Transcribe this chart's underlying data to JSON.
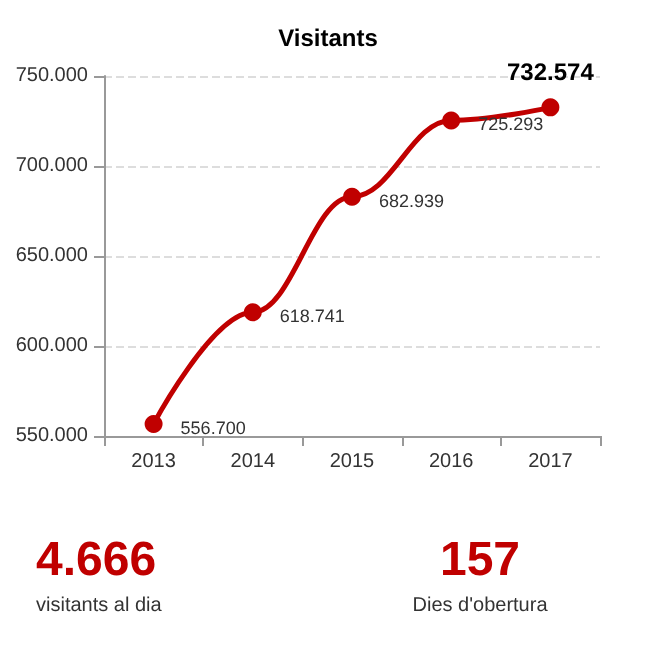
{
  "chart_data": {
    "type": "line",
    "title": "Visitants",
    "categories": [
      "2013",
      "2014",
      "2015",
      "2016",
      "2017"
    ],
    "series": [
      {
        "color": "#c00000",
        "values": [
          556700,
          618741,
          682939,
          725293,
          732574
        ],
        "value_labels": [
          "556.700",
          "618.741",
          "682.939",
          "725.293",
          "732.574"
        ]
      }
    ],
    "ylim": [
      550000,
      750000
    ],
    "yticks": [
      {
        "value": 550000,
        "label": "550.000"
      },
      {
        "value": 600000,
        "label": "600.000"
      },
      {
        "value": 650000,
        "label": "650.000"
      },
      {
        "value": 700000,
        "label": "700.000"
      },
      {
        "value": 750000,
        "label": "750.000"
      }
    ],
    "grid": "y",
    "marker": "circle",
    "line_style": "solid",
    "annotations": [
      "4.666",
      "visitants al dia",
      "157",
      "Dies d'obertura"
    ]
  }
}
